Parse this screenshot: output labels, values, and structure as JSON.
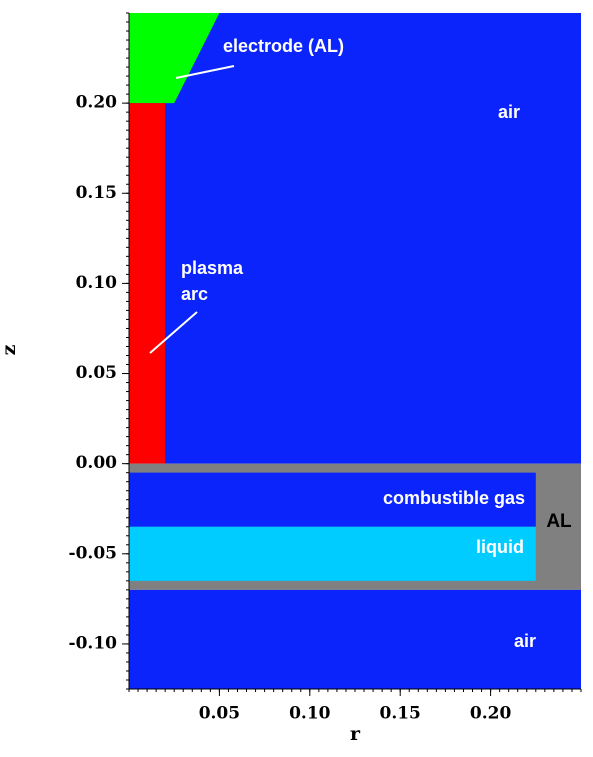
{
  "chart_data": {
    "type": "region",
    "xlabel": "r",
    "ylabel": "z",
    "xlim": [
      0,
      0.25
    ],
    "ylim": [
      -0.125,
      0.25
    ],
    "xticks": [
      {
        "value": 0.05,
        "label": "0.05"
      },
      {
        "value": 0.1,
        "label": "0.10"
      },
      {
        "value": 0.15,
        "label": "0.15"
      },
      {
        "value": 0.2,
        "label": "0.20"
      }
    ],
    "yticks": [
      {
        "value": -0.1,
        "label": "-0.10"
      },
      {
        "value": -0.05,
        "label": "-0.05"
      },
      {
        "value": 0,
        "label": "0.00"
      },
      {
        "value": 0.05,
        "label": "0.05"
      },
      {
        "value": 0.1,
        "label": "0.10"
      },
      {
        "value": 0.15,
        "label": "0.15"
      },
      {
        "value": 0.2,
        "label": "0.20"
      }
    ],
    "regions": [
      {
        "label": "air",
        "color": "#0b24fb",
        "r": [
          0,
          0.25,
          0.25,
          0
        ],
        "z": [
          0,
          0,
          0.25,
          0.25
        ]
      },
      {
        "label": "electrode (AL)",
        "color": "#00ff00",
        "r": [
          0,
          0.05,
          0.025,
          0
        ],
        "z": [
          0.25,
          0.25,
          0.2,
          0.2
        ]
      },
      {
        "label": [
          "plasma",
          "arc"
        ],
        "color": "#ff0000",
        "r": [
          0,
          0.02,
          0.02,
          0
        ],
        "z": [
          0,
          0,
          0.2,
          0.2
        ]
      },
      {
        "label": "AL",
        "color": "#808080",
        "r": [
          0,
          0.25,
          0.25,
          0
        ],
        "z": [
          -0.07,
          -0.07,
          0,
          0
        ]
      },
      {
        "label": "combustible gas",
        "color": "#0b24fb",
        "r": [
          0,
          0.225,
          0.225,
          0
        ],
        "z": [
          -0.035,
          -0.035,
          -0.005,
          -0.005
        ]
      },
      {
        "label": "liquid",
        "color": "#00ccff",
        "r": [
          0,
          0.225,
          0.225,
          0
        ],
        "z": [
          -0.065,
          -0.065,
          -0.035,
          -0.035
        ]
      },
      {
        "label": "air",
        "color": "#0b24fb",
        "r": [
          0,
          0.25,
          0.25,
          0
        ],
        "z": [
          -0.125,
          -0.125,
          -0.07,
          -0.07
        ]
      }
    ]
  }
}
